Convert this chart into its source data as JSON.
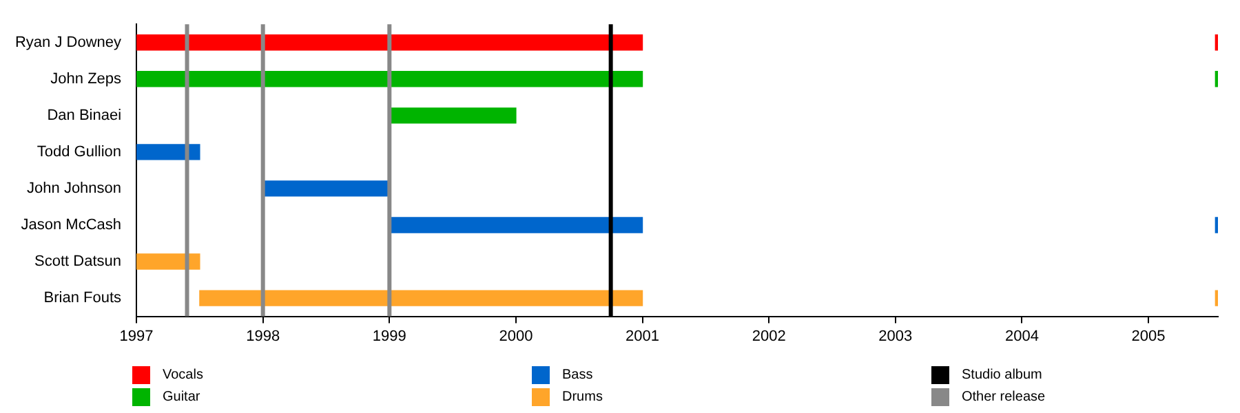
{
  "chart_data": {
    "type": "bar",
    "orientation": "horizontal",
    "categories": [
      "Ryan J Downey",
      "John Zeps",
      "Dan Binaei",
      "Todd Gullion",
      "John Johnson",
      "Jason McCash",
      "Scott Datsun",
      "Brian Fouts"
    ],
    "series": [
      {
        "name": "Vocals",
        "color": "#ff0000",
        "base": [
          1997,
          null,
          null,
          null,
          null,
          null,
          null,
          null
        ],
        "values": [
          4,
          null,
          null,
          null,
          null,
          null,
          null,
          null
        ]
      },
      {
        "name": "Guitar",
        "color": "#00b400",
        "base": [
          null,
          1997,
          1999,
          null,
          null,
          null,
          null,
          null
        ],
        "values": [
          null,
          4,
          1,
          null,
          null,
          null,
          null,
          null
        ]
      },
      {
        "name": "Bass",
        "color": "#0066cc",
        "base": [
          null,
          null,
          null,
          1997,
          1998,
          1999,
          null,
          null
        ],
        "values": [
          null,
          null,
          null,
          0.5,
          1,
          2,
          null,
          null
        ]
      },
      {
        "name": "Drums",
        "color": "#ffa52a",
        "base": [
          null,
          null,
          null,
          null,
          null,
          null,
          1997,
          1997.5
        ],
        "values": [
          null,
          null,
          null,
          null,
          null,
          null,
          0.5,
          3.5
        ]
      },
      {
        "colors": [
          "#ff0000",
          "#00b400",
          null,
          null,
          null,
          "#0066cc",
          null,
          "#ffa52a"
        ],
        "base": [
          2005.53,
          2005.53,
          null,
          null,
          null,
          2005.53,
          null,
          2005.53
        ],
        "values": [
          0.02,
          0.02,
          null,
          null,
          null,
          0.02,
          null,
          0.02
        ]
      }
    ],
    "xlim": [
      1997,
      2005.55
    ],
    "xticks": [
      1997,
      1998,
      1999,
      2000,
      2001,
      2002,
      2003,
      2004,
      2005
    ],
    "ref_lines": [
      {
        "axis": "x",
        "value": 2000.75,
        "label": "Studio album",
        "color": "#000000"
      },
      {
        "axis": "x",
        "value": 1997.4,
        "label": "Other release",
        "color": "#888888"
      },
      {
        "axis": "x",
        "value": 1998,
        "label": null,
        "color": "#888888"
      },
      {
        "axis": "x",
        "value": 1999,
        "label": null,
        "color": "#888888"
      }
    ],
    "legend": "bottom"
  }
}
